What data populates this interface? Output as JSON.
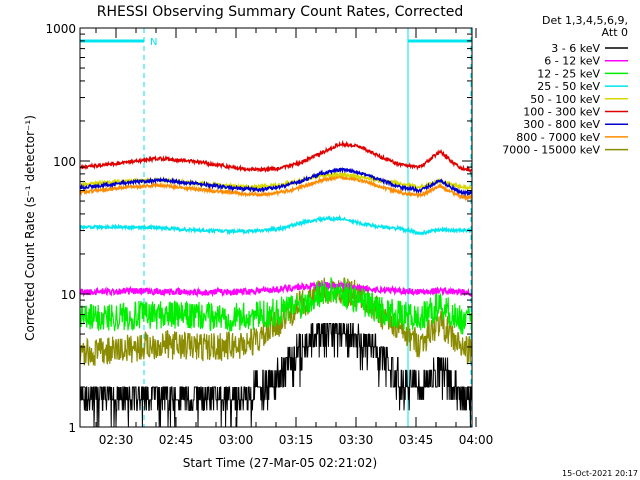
{
  "chart_data": {
    "type": "line",
    "title": "RHESSI Observing Summary Count Rates, Corrected",
    "xlabel": "Start Time (27-Mar-05 02:21:02)",
    "ylabel": "Corrected Count Rate (s⁻¹ detector⁻¹)",
    "y_scale": "log",
    "ylim": [
      1,
      1000
    ],
    "xlim_minutes": [
      0,
      98
    ],
    "x_ticks": [
      {
        "label": "02:30",
        "min": 9
      },
      {
        "label": "02:45",
        "min": 24
      },
      {
        "label": "03:00",
        "min": 39
      },
      {
        "label": "03:15",
        "min": 54
      },
      {
        "label": "03:30",
        "min": 69
      },
      {
        "label": "03:45",
        "min": 84
      },
      {
        "label": "04:00",
        "min": 99
      }
    ],
    "y_ticks": [
      {
        "label": "1",
        "value": 1
      },
      {
        "label": "10",
        "value": 10
      },
      {
        "label": "100",
        "value": 100
      },
      {
        "label": "1000",
        "value": 1000
      }
    ],
    "legend_header": [
      "Det 1,3,4,5,6,9,",
      "Att 0"
    ],
    "night_intervals": [
      [
        0,
        16
      ],
      [
        82,
        98
      ]
    ],
    "attenuator_marker": "N",
    "series": [
      {
        "name": "3 - 6 keV",
        "color": "#000000",
        "style": "discrete_low",
        "x": [
          0,
          10,
          20,
          30,
          40,
          45,
          50,
          55,
          60,
          65,
          70,
          75,
          80,
          85,
          90,
          95,
          98
        ],
        "y": [
          1.6,
          1.6,
          1.6,
          1.6,
          1.6,
          1.8,
          2.3,
          3.4,
          4.5,
          4.8,
          4.2,
          3.2,
          2.1,
          1.9,
          2.6,
          1.7,
          1.6
        ]
      },
      {
        "name": "6 - 12 keV",
        "color": "#ff00ff",
        "style": "noisy",
        "x": [
          0,
          10,
          20,
          30,
          40,
          45,
          50,
          55,
          60,
          65,
          70,
          75,
          80,
          85,
          90,
          95,
          98
        ],
        "y": [
          10.3,
          10.5,
          10.4,
          10.3,
          10.4,
          10.6,
          10.9,
          11.3,
          11.7,
          11.5,
          11.0,
          10.7,
          10.6,
          10.4,
          10.6,
          10.3,
          10.2
        ]
      },
      {
        "name": "12 - 25 keV",
        "color": "#00ee00",
        "style": "noisy",
        "x": [
          0,
          10,
          20,
          30,
          40,
          45,
          50,
          55,
          60,
          65,
          70,
          75,
          80,
          85,
          90,
          95,
          98
        ],
        "y": [
          6.5,
          6.8,
          7.0,
          6.8,
          6.7,
          6.9,
          7.4,
          8.3,
          10.3,
          10.5,
          9.0,
          7.6,
          6.9,
          6.5,
          8.3,
          6.4,
          6.2
        ]
      },
      {
        "name": "25 - 50 keV",
        "color": "#00e5ee",
        "style": "noisy",
        "x": [
          0,
          10,
          20,
          30,
          40,
          45,
          50,
          55,
          60,
          65,
          70,
          75,
          80,
          85,
          90,
          95,
          98
        ],
        "y": [
          32,
          32,
          31.5,
          30,
          29.5,
          30,
          31,
          34,
          36.5,
          37,
          34,
          32,
          31,
          28.5,
          30.5,
          30,
          30
        ]
      },
      {
        "name": "50 - 100 keV",
        "color": "#d8d800",
        "style": "noisy",
        "x": [
          0,
          10,
          20,
          30,
          40,
          45,
          50,
          55,
          60,
          65,
          70,
          75,
          80,
          85,
          90,
          95,
          98
        ],
        "y": [
          66,
          70,
          72,
          68,
          64,
          64,
          66,
          71,
          78,
          79,
          76,
          71,
          68,
          63,
          71,
          64,
          63
        ]
      },
      {
        "name": "100 - 300 keV",
        "color": "#e00000",
        "style": "noisy",
        "x": [
          0,
          10,
          20,
          30,
          40,
          45,
          50,
          55,
          60,
          65,
          70,
          75,
          80,
          85,
          90,
          95,
          98
        ],
        "y": [
          90,
          96,
          105,
          98,
          88,
          86,
          88,
          97,
          113,
          135,
          128,
          108,
          94,
          90,
          118,
          88,
          85
        ]
      },
      {
        "name": "300 - 800 keV",
        "color": "#0000cc",
        "style": "noisy",
        "x": [
          0,
          10,
          20,
          30,
          40,
          45,
          50,
          55,
          60,
          65,
          70,
          75,
          80,
          85,
          90,
          95,
          98
        ],
        "y": [
          63,
          68,
          72,
          67,
          62,
          61,
          64,
          70,
          80,
          86,
          82,
          72,
          64,
          60,
          71,
          58,
          57
        ]
      },
      {
        "name": "800 - 7000 keV",
        "color": "#ff8c00",
        "style": "noisy",
        "x": [
          0,
          10,
          20,
          30,
          40,
          45,
          50,
          55,
          60,
          65,
          70,
          75,
          80,
          85,
          90,
          95,
          98
        ],
        "y": [
          58,
          63,
          66,
          61,
          57,
          56,
          58,
          63,
          71,
          76,
          72,
          64,
          58,
          55,
          65,
          54,
          53
        ]
      },
      {
        "name": "7000 - 15000 keV",
        "color": "#8b8b00",
        "style": "noisy",
        "x": [
          0,
          10,
          20,
          30,
          40,
          45,
          50,
          55,
          60,
          65,
          70,
          75,
          80,
          85,
          90,
          95,
          98
        ],
        "y": [
          3.5,
          3.8,
          4.2,
          4.0,
          4.1,
          4.6,
          6.2,
          8.3,
          10.2,
          10.8,
          9.7,
          7.2,
          5.3,
          4.2,
          6.3,
          4.0,
          3.7
        ]
      }
    ],
    "footer_date": "15-Oct-2021 20:17"
  }
}
